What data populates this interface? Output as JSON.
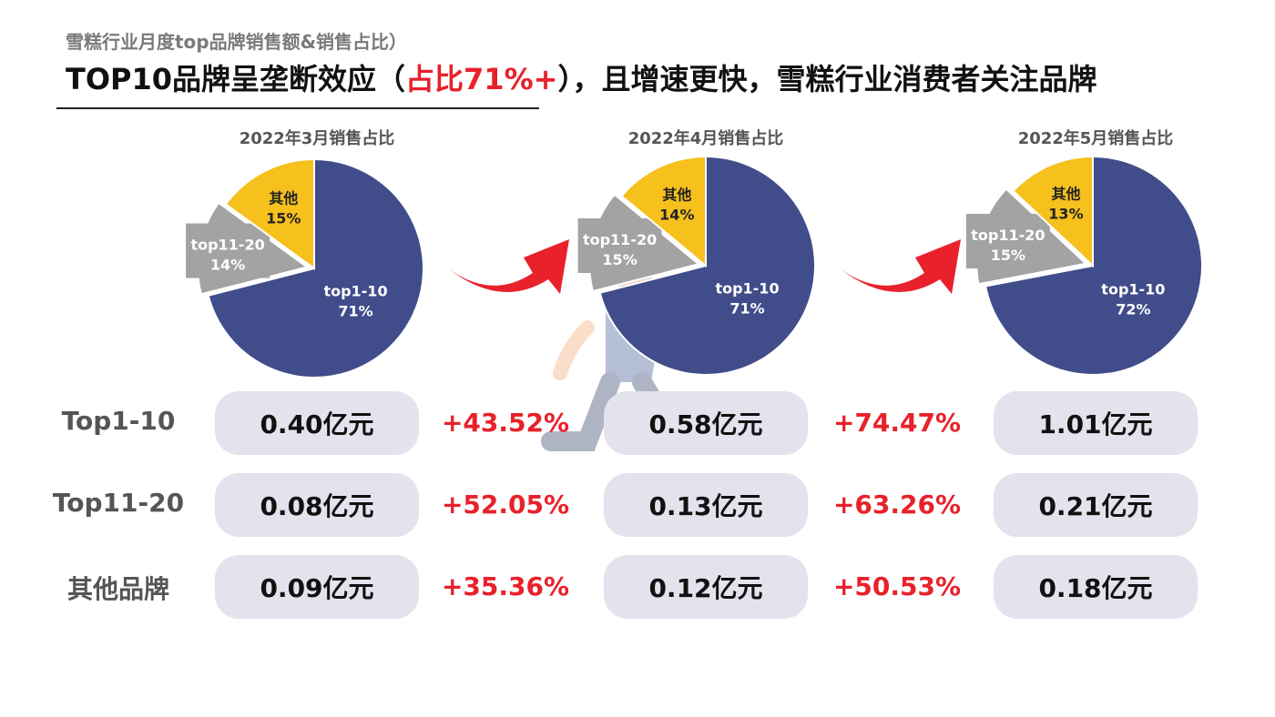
{
  "header": {
    "subtitle": "雪糕行业月度top品牌销售额&销售占比）",
    "headline_prefix": "TOP10品牌呈垄断效应（",
    "headline_highlight": "占比71%+",
    "headline_suffix": "），且增速更快，雪糕行业消费者关注品牌",
    "highlight_color": "#e8212b"
  },
  "colors": {
    "top1_10": "#414d8a",
    "top11_20": "#a3a3a3",
    "other": "#f6c01d",
    "pill_bg": "#e3e2ed",
    "growth": "#e8212b"
  },
  "chart_data": [
    {
      "type": "pie",
      "title": "2022年3月销售占比",
      "slices": [
        {
          "label": "top1-10",
          "value": 71,
          "value_label": "71%"
        },
        {
          "label": "top11-20",
          "value": 14,
          "value_label": "14%"
        },
        {
          "label": "其他",
          "value": 15,
          "value_label": "15%"
        }
      ]
    },
    {
      "type": "pie",
      "title": "2022年4月销售占比",
      "slices": [
        {
          "label": "top1-10",
          "value": 71,
          "value_label": "71%"
        },
        {
          "label": "top11-20",
          "value": 15,
          "value_label": "15%"
        },
        {
          "label": "其他",
          "value": 14,
          "value_label": "14%"
        }
      ]
    },
    {
      "type": "pie",
      "title": "2022年5月销售占比",
      "slices": [
        {
          "label": "top1-10",
          "value": 72,
          "value_label": "72%"
        },
        {
          "label": "top11-20",
          "value": 15,
          "value_label": "15%"
        },
        {
          "label": "其他",
          "value": 13,
          "value_label": "13%"
        }
      ]
    }
  ],
  "table": {
    "rows": [
      {
        "label": "Top1-10",
        "values": [
          "0.40亿元",
          "0.58亿元",
          "1.01亿元"
        ],
        "growth": [
          "+43.52%",
          "+74.47%"
        ]
      },
      {
        "label": "Top11-20",
        "values": [
          "0.08亿元",
          "0.13亿元",
          "0.21亿元"
        ],
        "growth": [
          "+52.05%",
          "+63.26%"
        ]
      },
      {
        "label": "其他品牌",
        "values": [
          "0.09亿元",
          "0.12亿元",
          "0.18亿元"
        ],
        "growth": [
          "+35.36%",
          "+50.53%"
        ]
      }
    ]
  }
}
